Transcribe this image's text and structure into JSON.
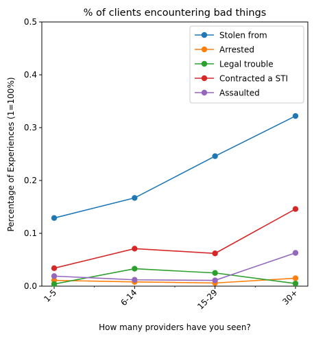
{
  "chart_data": {
    "type": "line",
    "title": "% of clients encountering bad things",
    "xlabel": "How many providers have you seen?",
    "ylabel": "Percentage of Experiences (1=100%)",
    "categories": [
      "1-5",
      "6-14",
      "15-29",
      "30+"
    ],
    "ylim": [
      0,
      0.5
    ],
    "yticks": [
      "0.0",
      "0.1",
      "0.2",
      "0.3",
      "0.4",
      "0.5"
    ],
    "grid": false,
    "legend_position": "top-right",
    "series": [
      {
        "name": "Stolen from",
        "color": "#1f77b4",
        "values": [
          0.129,
          0.167,
          0.246,
          0.322
        ]
      },
      {
        "name": "Arrested",
        "color": "#ff7f0e",
        "values": [
          0.011,
          0.008,
          0.006,
          0.015
        ]
      },
      {
        "name": "Legal trouble",
        "color": "#2ca02c",
        "values": [
          0.004,
          0.033,
          0.025,
          0.005
        ]
      },
      {
        "name": "Contracted a STI",
        "color": "#d62728",
        "values": [
          0.034,
          0.071,
          0.062,
          0.146
        ]
      },
      {
        "name": "Assaulted",
        "color": "#9467bd",
        "values": [
          0.019,
          0.012,
          0.011,
          0.063
        ]
      }
    ]
  }
}
